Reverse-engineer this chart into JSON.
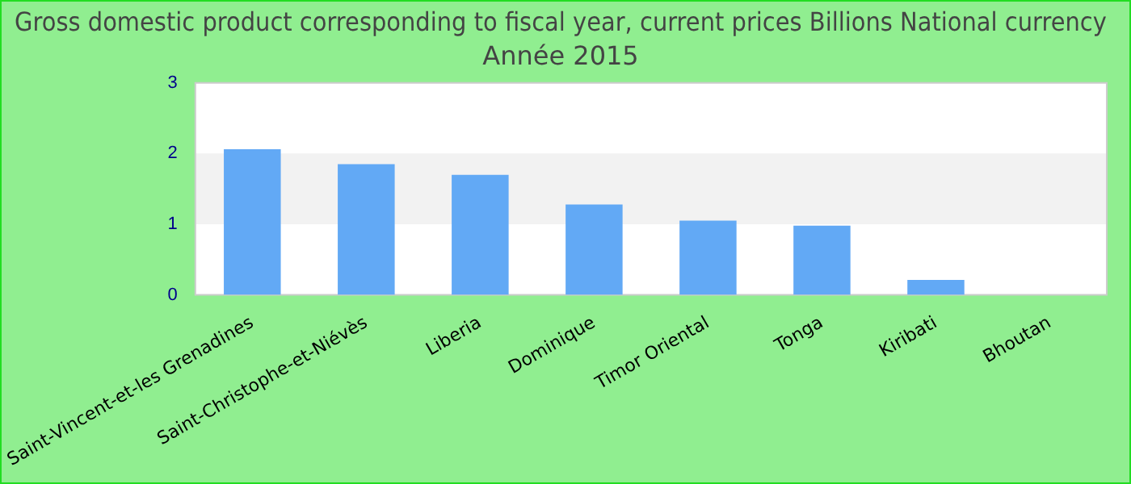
{
  "chart_data": {
    "type": "bar",
    "title": "Gross domestic product corresponding to fiscal year, current prices Billions National currency",
    "subtitle": "Année 2015",
    "categories": [
      "Saint-Vincent-et-les Grenadines",
      "Saint-Christophe-et-Niévès",
      "Liberia",
      "Dominique",
      "Timor Oriental",
      "Tonga",
      "Kiribati",
      "Bhoutan"
    ],
    "values": [
      2.06,
      1.85,
      1.7,
      1.28,
      1.05,
      0.98,
      0.21,
      null
    ],
    "color": "#62a9f5",
    "ylim": [
      0,
      3
    ],
    "yticks": [
      0,
      1,
      2,
      3
    ],
    "bands": [
      {
        "axis": "y",
        "from": 1,
        "to": 2,
        "color": "#f2f2f2"
      }
    ],
    "legend": false
  }
}
